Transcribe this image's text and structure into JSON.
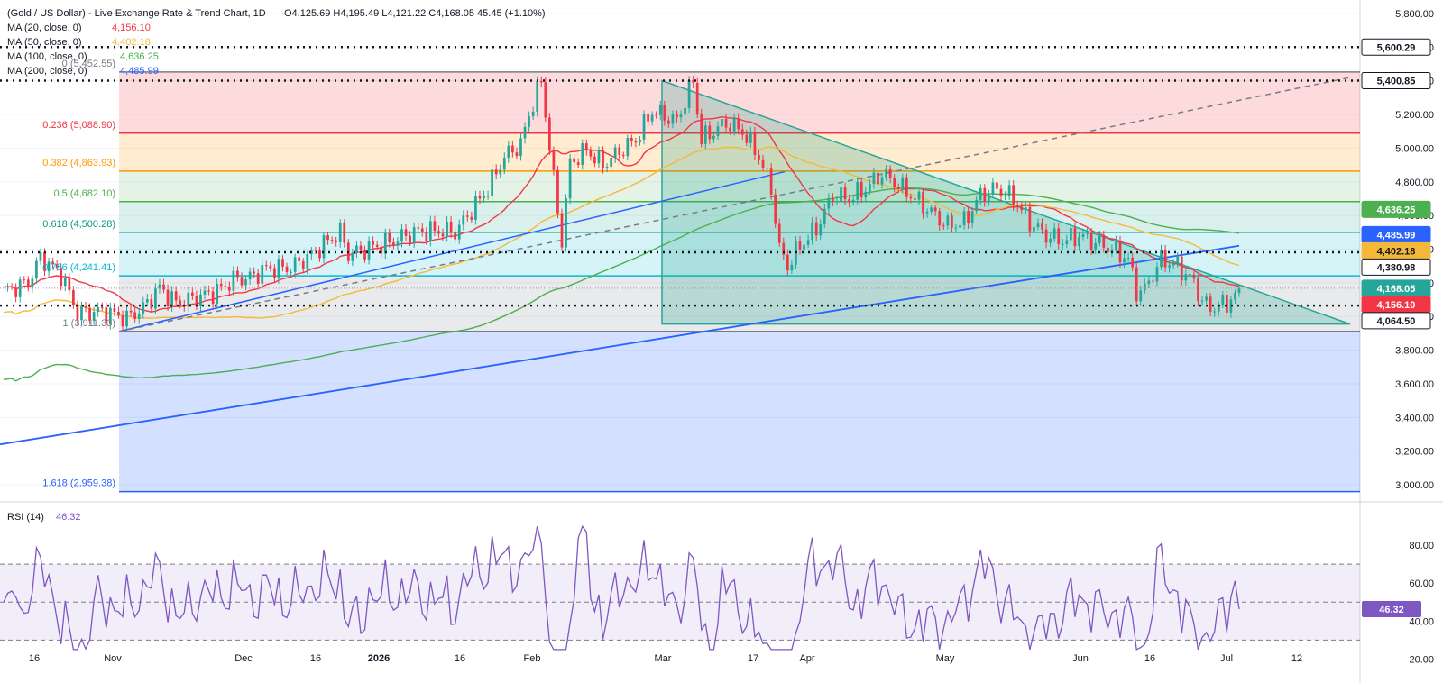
{
  "header": {
    "symbol": "(Gold / US Dollar) - Live Exchange Rate & Trend Chart, 1D",
    "ohlc": "O4,125.69  H4,195.49  L4,121.22  C4,168.05  45.45 (+1.10%)"
  },
  "indicators": [
    {
      "label": "MA (20, close, 0)",
      "value": "4,156.10",
      "color": "#f23645"
    },
    {
      "label": "MA (50, close, 0)",
      "value": "4,402.18",
      "color": "#f5b939"
    },
    {
      "label": "MA (100, close, 0)",
      "value": "4,636.25",
      "color": "#4caf50"
    },
    {
      "label": "MA (200, close, 0)",
      "value": "4,485.99",
      "color": "#2962ff"
    }
  ],
  "colors": {
    "up": "#26a69a",
    "down": "#f23645",
    "rsi": "#7e57c2",
    "grid": "#f0f3fa",
    "dotted": "#131722"
  },
  "chart_data": [
    {
      "type": "candlestick",
      "title": "(Gold / US Dollar) - Live Exchange Rate & Trend Chart, 1D",
      "ylim": [
        2920,
        5880
      ],
      "y_ticks": [
        3000,
        3200,
        3400,
        3600,
        3800,
        4000,
        4200,
        4400,
        4600,
        4800,
        5000,
        5200,
        5400,
        5600,
        5800
      ],
      "y_tick_labels": [
        "3,000.00",
        "3,200.00",
        "3,400.00",
        "3,600.00",
        "3,800.00",
        "4,000.00",
        "4,200.00",
        "4,400.00",
        "4,600.00",
        "4,800.00",
        "5,000.00",
        "5,200.00",
        "5,400.00",
        "5,600.00",
        "5,800.00"
      ],
      "x_tick_labels": [
        "16",
        "Nov",
        "Dec",
        "16",
        "2026",
        "16",
        "Feb",
        "Mar",
        "17",
        "Apr",
        "May",
        "Jun",
        "16",
        "Jul",
        "12"
      ],
      "fibonacci": [
        {
          "label": "0 (5,452.55)",
          "level": 5452.55
        },
        {
          "label": "0.236 (5,088.90)",
          "level": 5088.9
        },
        {
          "label": "0.382 (4,863.93)",
          "level": 4863.93
        },
        {
          "label": "0.5 (4,682.10)",
          "level": 4682.1
        },
        {
          "label": "0.618 (4,500.28)",
          "level": 4500.28
        },
        {
          "label": "0.786 (4,241.41)",
          "level": 4241.41
        },
        {
          "label": "1 (3,911.33)",
          "level": 3911.33
        },
        {
          "label": "1.618 (2,959.38)",
          "level": 2959.38
        }
      ],
      "horizontal_levels": [
        5600.29,
        5400.85,
        4380.98,
        4064.5
      ],
      "price_badges": [
        {
          "value": "5,600.29",
          "price": 5600.29,
          "bg": "#ffffff",
          "fg": "#131722"
        },
        {
          "value": "5,400.85",
          "price": 5400.85,
          "bg": "#ffffff",
          "fg": "#131722"
        },
        {
          "value": "4,636.25",
          "price": 4636.25,
          "bg": "#4caf50",
          "fg": "#ffffff"
        },
        {
          "value": "4,485.99",
          "price": 4485.99,
          "bg": "#2962ff",
          "fg": "#ffffff"
        },
        {
          "value": "4,402.18",
          "price": 4402.18,
          "bg": "#f5b939",
          "fg": "#131722"
        },
        {
          "value": "4,380.98",
          "price": 4380.98,
          "bg": "#ffffff",
          "fg": "#131722"
        },
        {
          "value": "4,168.05",
          "price": 4168.05,
          "bg": "#26a69a",
          "fg": "#ffffff"
        },
        {
          "value": "4,156.10",
          "price": 4156.1,
          "bg": "#f23645",
          "fg": "#ffffff"
        },
        {
          "value": "4,064.50",
          "price": 4064.5,
          "bg": "#ffffff",
          "fg": "#131722"
        }
      ],
      "last_close": 4168.05
    },
    {
      "type": "line",
      "title": "RSI (14)",
      "value_label": "46.32",
      "ylim": [
        15,
        100
      ],
      "y_ticks": [
        20,
        40,
        60,
        80
      ],
      "y_tick_labels": [
        "20.00",
        "40.00",
        "60.00",
        "80.00"
      ],
      "bands": [
        30,
        50,
        70
      ]
    }
  ]
}
